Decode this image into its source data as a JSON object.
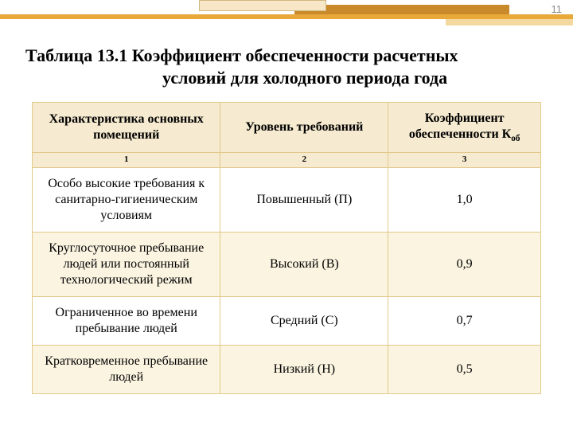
{
  "page_number": "11",
  "title": {
    "line1": "Таблица 13.1   Коэффициент обеспеченности расчетных",
    "line2": "условий для холодного периода года"
  },
  "accent_colors": {
    "main": "#e9a93a",
    "dark": "#c88a2a",
    "light_box": "#f7e7c6",
    "light_bar": "#f3d9a0",
    "border": "#e2c98a",
    "header_bg": "#f6ebd0",
    "stripe_bg": "#fbf4e1"
  },
  "table": {
    "columns": [
      "Характеристика основных помещений",
      "Уровень требований",
      "Коэффициент обеспеченности К"
    ],
    "k_sub": "об",
    "column_numbers": [
      "1",
      "2",
      "3"
    ],
    "rows": [
      {
        "c1": "Особо высокие требования к санитарно-гигиеническим условиям",
        "c2": "Повышенный (П)",
        "c3": "1,0",
        "stripe": false
      },
      {
        "c1": "Круглосуточное пребывание людей или постоянный технологический режим",
        "c2": "Высокий (В)",
        "c3": "0,9",
        "stripe": true
      },
      {
        "c1": "Ограниченное во времени пребывание людей",
        "c2": "Средний (С)",
        "c3": "0,7",
        "stripe": false
      },
      {
        "c1": "Кратковременное пребывание людей",
        "c2": "Низкий (Н)",
        "c3": "0,5",
        "stripe": true
      }
    ]
  },
  "fonts": {
    "title_size_pt": 22,
    "body_size_pt": 16,
    "colnum_size_pt": 11,
    "page_num_size_pt": 13
  }
}
